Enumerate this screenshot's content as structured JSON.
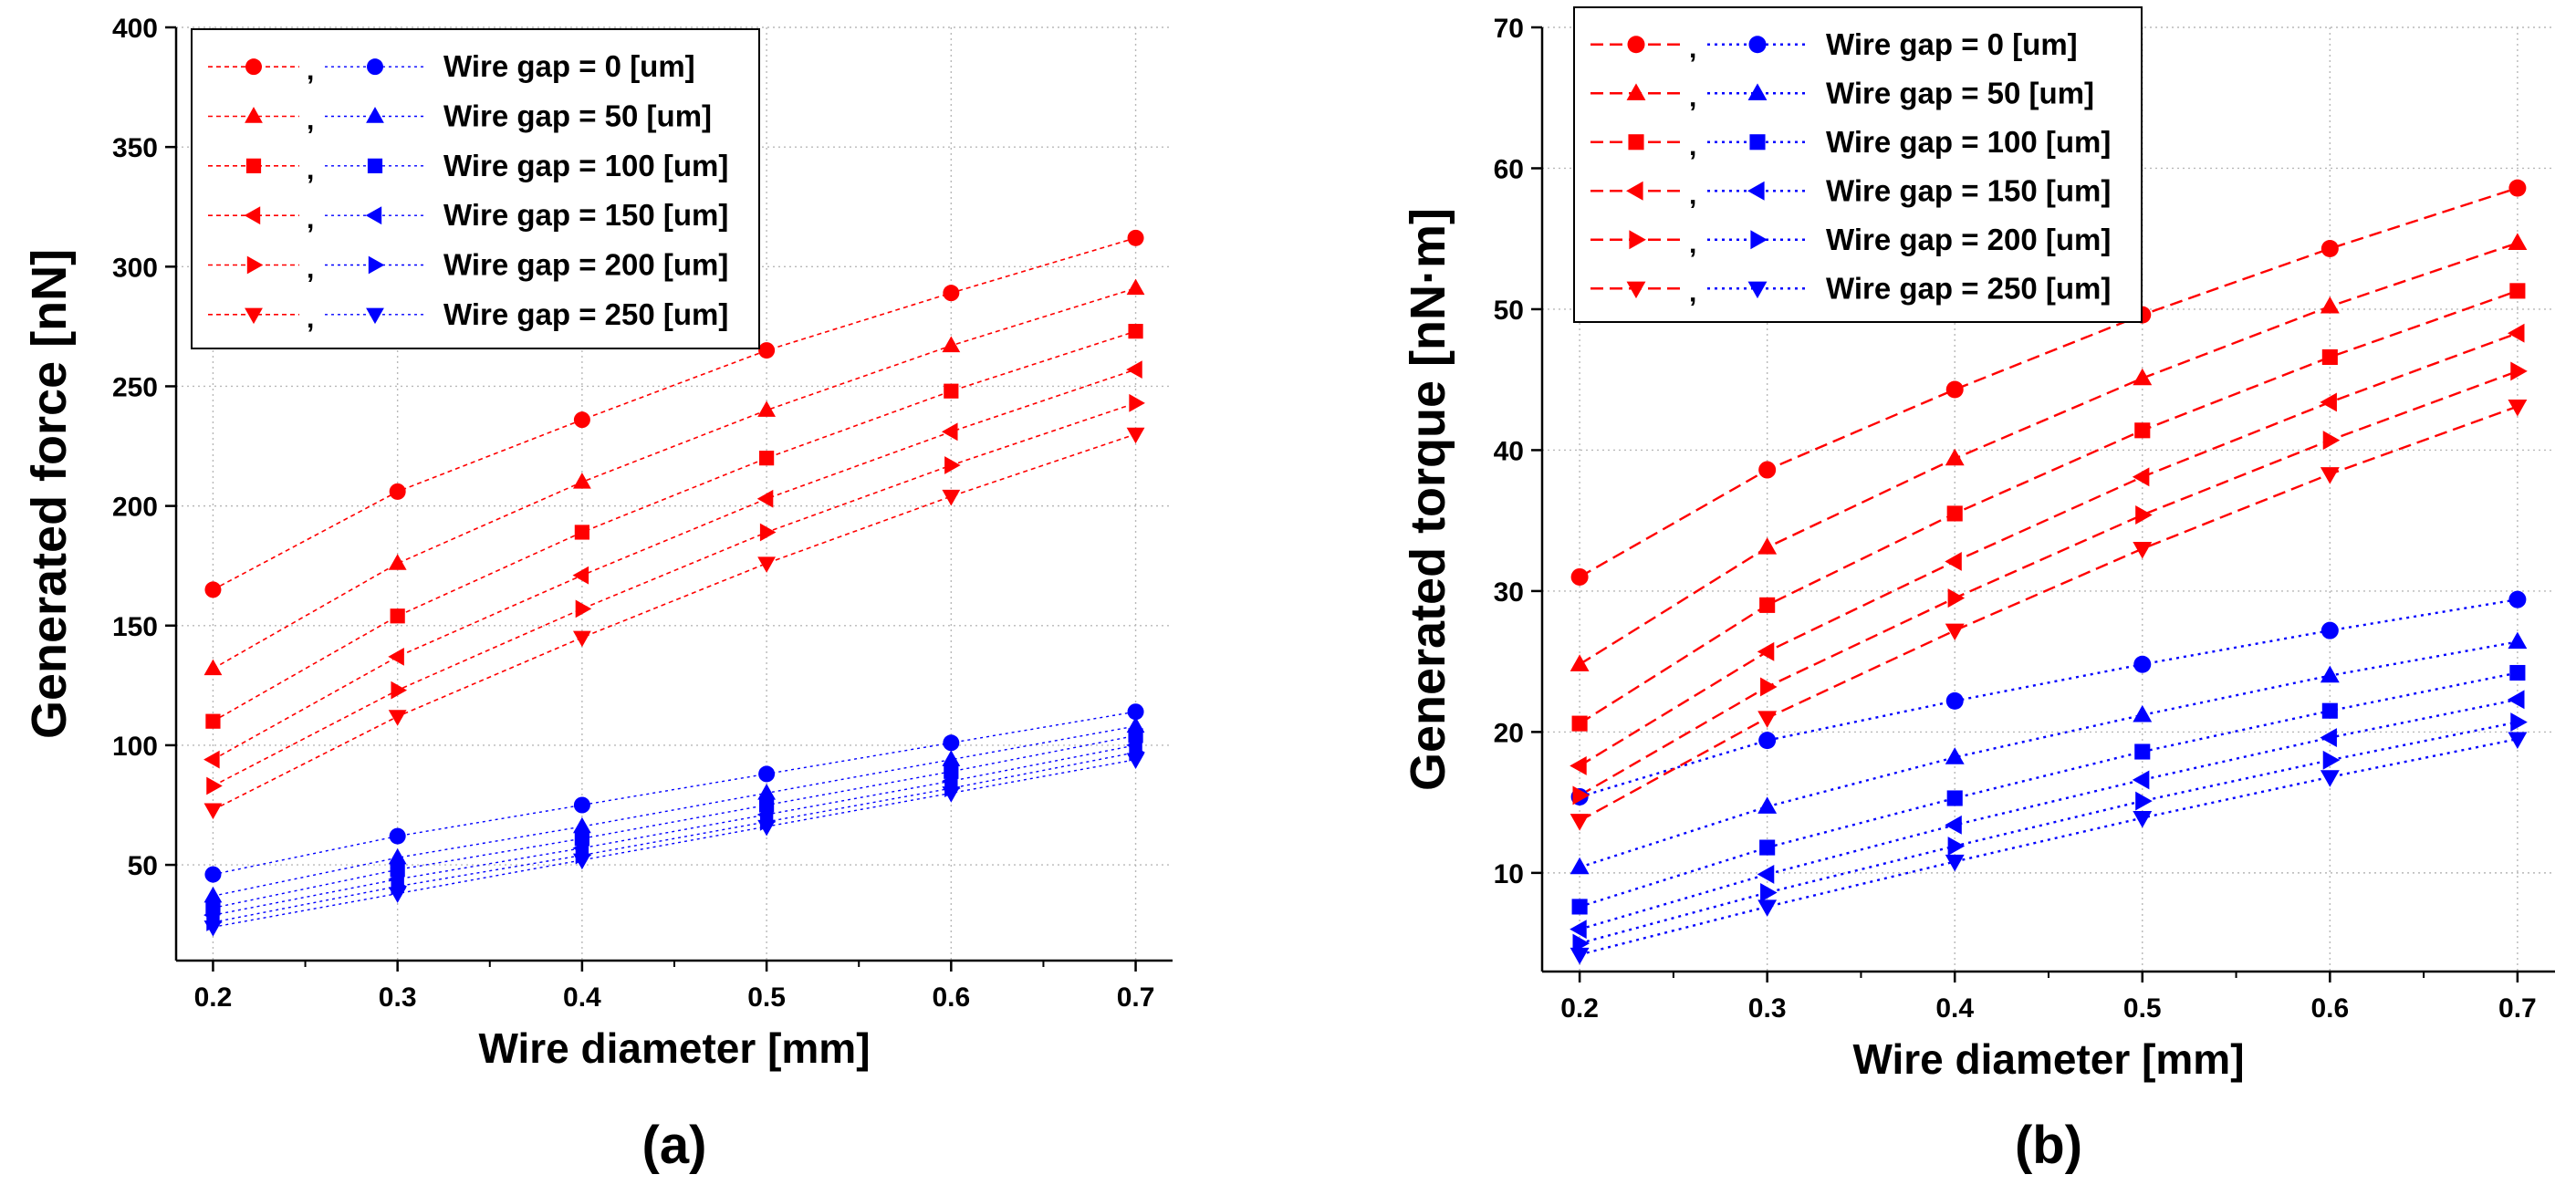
{
  "chart_data": [
    {
      "type": "line",
      "panel_label": "(a)",
      "xlabel": "Wire diameter [mm]",
      "ylabel": "Generated force [nN]",
      "x": [
        0.2,
        0.3,
        0.4,
        0.5,
        0.6,
        0.7
      ],
      "xlim": [
        0.18,
        0.72
      ],
      "ylim": [
        10,
        400
      ],
      "xticks": [
        "0.2",
        "0.3",
        "0.4",
        "0.5",
        "0.6",
        "0.7"
      ],
      "yticks": [
        50,
        100,
        150,
        200,
        250,
        300,
        350,
        400
      ],
      "grid": true,
      "legend_position": "top-left",
      "legend_separator": ",",
      "colors": {
        "red": "#ff0000",
        "blue": "#0000ff"
      },
      "series": [
        {
          "gap": "Wire gap = 0 [um]",
          "marker": "circle",
          "red": [
            165,
            206,
            236,
            265,
            289,
            312
          ],
          "blue": [
            46,
            62,
            75,
            88,
            101,
            114
          ]
        },
        {
          "gap": "Wire gap = 50 [um]",
          "marker": "triangle-up",
          "red": [
            132,
            176,
            210,
            240,
            267,
            291
          ],
          "blue": [
            37,
            53,
            66,
            80,
            94,
            108
          ]
        },
        {
          "gap": "Wire gap = 100 [um]",
          "marker": "square",
          "red": [
            110,
            154,
            189,
            220,
            248,
            273
          ],
          "blue": [
            32,
            48,
            61,
            75,
            89,
            104
          ]
        },
        {
          "gap": "Wire gap = 150 [um]",
          "marker": "triangle-left",
          "red": [
            94,
            137,
            171,
            203,
            231,
            257
          ],
          "blue": [
            29,
            44,
            57,
            71,
            85,
            100
          ]
        },
        {
          "gap": "Wire gap = 200 [um]",
          "marker": "triangle-right",
          "red": [
            83,
            123,
            157,
            189,
            217,
            243
          ],
          "blue": [
            26,
            41,
            54,
            68,
            82,
            97
          ]
        },
        {
          "gap": "Wire gap = 250 [um]",
          "marker": "triangle-down",
          "red": [
            73,
            112,
            145,
            176,
            204,
            230
          ],
          "blue": [
            24,
            38,
            52,
            66,
            80,
            94
          ]
        }
      ]
    },
    {
      "type": "line",
      "panel_label": "(b)",
      "xlabel": "Wire diameter [mm]",
      "ylabel": "Generated torque [nN·m]",
      "x": [
        0.2,
        0.3,
        0.4,
        0.5,
        0.6,
        0.7
      ],
      "xlim": [
        0.18,
        0.72
      ],
      "ylim": [
        3,
        70
      ],
      "xticks": [
        "0.2",
        "0.3",
        "0.4",
        "0.5",
        "0.6",
        "0.7"
      ],
      "yticks": [
        10,
        20,
        30,
        40,
        50,
        60,
        70
      ],
      "grid": true,
      "legend_position": "top-left",
      "legend_separator": ",",
      "colors": {
        "red": "#ff0000",
        "blue": "#0000ff"
      },
      "series": [
        {
          "gap": "Wire gap = 0 [um]",
          "marker": "circle",
          "red": [
            31.0,
            38.6,
            44.3,
            49.6,
            54.3,
            58.6
          ],
          "blue": [
            15.4,
            19.4,
            22.2,
            24.8,
            27.2,
            29.4
          ]
        },
        {
          "gap": "Wire gap = 50 [um]",
          "marker": "triangle-up",
          "red": [
            24.8,
            33.1,
            39.4,
            45.1,
            50.2,
            54.7
          ],
          "blue": [
            10.4,
            14.7,
            18.2,
            21.2,
            24.0,
            26.4
          ]
        },
        {
          "gap": "Wire gap = 100 [um]",
          "marker": "square",
          "red": [
            20.6,
            29.0,
            35.5,
            41.4,
            46.6,
            51.3
          ],
          "blue": [
            7.6,
            11.8,
            15.3,
            18.6,
            21.5,
            24.2
          ]
        },
        {
          "gap": "Wire gap = 150 [um]",
          "marker": "triangle-left",
          "red": [
            17.6,
            25.7,
            32.1,
            38.1,
            43.4,
            48.3
          ],
          "blue": [
            6.0,
            9.9,
            13.4,
            16.6,
            19.6,
            22.3
          ]
        },
        {
          "gap": "Wire gap = 200 [um]",
          "marker": "triangle-right",
          "red": [
            15.5,
            23.2,
            29.5,
            35.4,
            40.7,
            45.6
          ],
          "blue": [
            5.0,
            8.6,
            11.9,
            15.1,
            18.0,
            20.7
          ]
        },
        {
          "gap": "Wire gap = 250 [um]",
          "marker": "triangle-down",
          "red": [
            13.7,
            21.0,
            27.2,
            33.0,
            38.3,
            43.1
          ],
          "blue": [
            4.2,
            7.6,
            10.8,
            13.9,
            16.8,
            19.5
          ]
        }
      ]
    }
  ]
}
